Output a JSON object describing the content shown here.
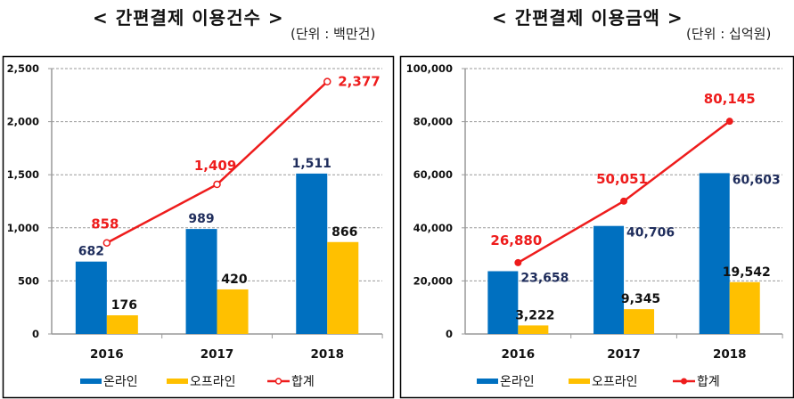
{
  "colors": {
    "online": "#0070C0",
    "offline": "#FFC000",
    "total": "#EE1C1C",
    "online_label": "#1F2D5C",
    "offline_label": "#111111"
  },
  "chart_data": [
    {
      "type": "bar",
      "title": "< 간편결제 이용건수 >",
      "unit": "(단위 : 백만건)",
      "categories": [
        "2016",
        "2017",
        "2018"
      ],
      "yticks": [
        "0",
        "500",
        "1,000",
        "1,500",
        "2,000",
        "2,500"
      ],
      "ylim": [
        0,
        2500
      ],
      "grid": true,
      "legend_position": "bottom",
      "marker": "open-circle",
      "series": [
        {
          "name": "온라인",
          "kind": "bar",
          "values": [
            682,
            989,
            1511
          ],
          "labels": [
            "682",
            "989",
            "1,511"
          ]
        },
        {
          "name": "오프라인",
          "kind": "bar",
          "values": [
            176,
            420,
            866
          ],
          "labels": [
            "176",
            "420",
            "866"
          ]
        },
        {
          "name": "합계",
          "kind": "line",
          "values": [
            858,
            1409,
            2377
          ],
          "labels": [
            "858",
            "1,409",
            "2,377"
          ]
        }
      ]
    },
    {
      "type": "bar",
      "title": "< 간편결제 이용금액 >",
      "unit": "(단위 : 십억원)",
      "categories": [
        "2016",
        "2017",
        "2018"
      ],
      "yticks": [
        "0",
        "20,000",
        "40,000",
        "60,000",
        "80,000",
        "100,000"
      ],
      "ylim": [
        0,
        100000
      ],
      "grid": true,
      "legend_position": "bottom",
      "marker": "filled-circle",
      "series": [
        {
          "name": "온라인",
          "kind": "bar",
          "values": [
            23658,
            40706,
            60603
          ],
          "labels": [
            "23,658",
            "40,706",
            "60,603"
          ]
        },
        {
          "name": "오프라인",
          "kind": "bar",
          "values": [
            3222,
            9345,
            19542
          ],
          "labels": [
            "3,222",
            "9,345",
            "19,542"
          ]
        },
        {
          "name": "합계",
          "kind": "line",
          "values": [
            26880,
            50051,
            80145
          ],
          "labels": [
            "26,880",
            "50,051",
            "80,145"
          ]
        }
      ]
    }
  ]
}
